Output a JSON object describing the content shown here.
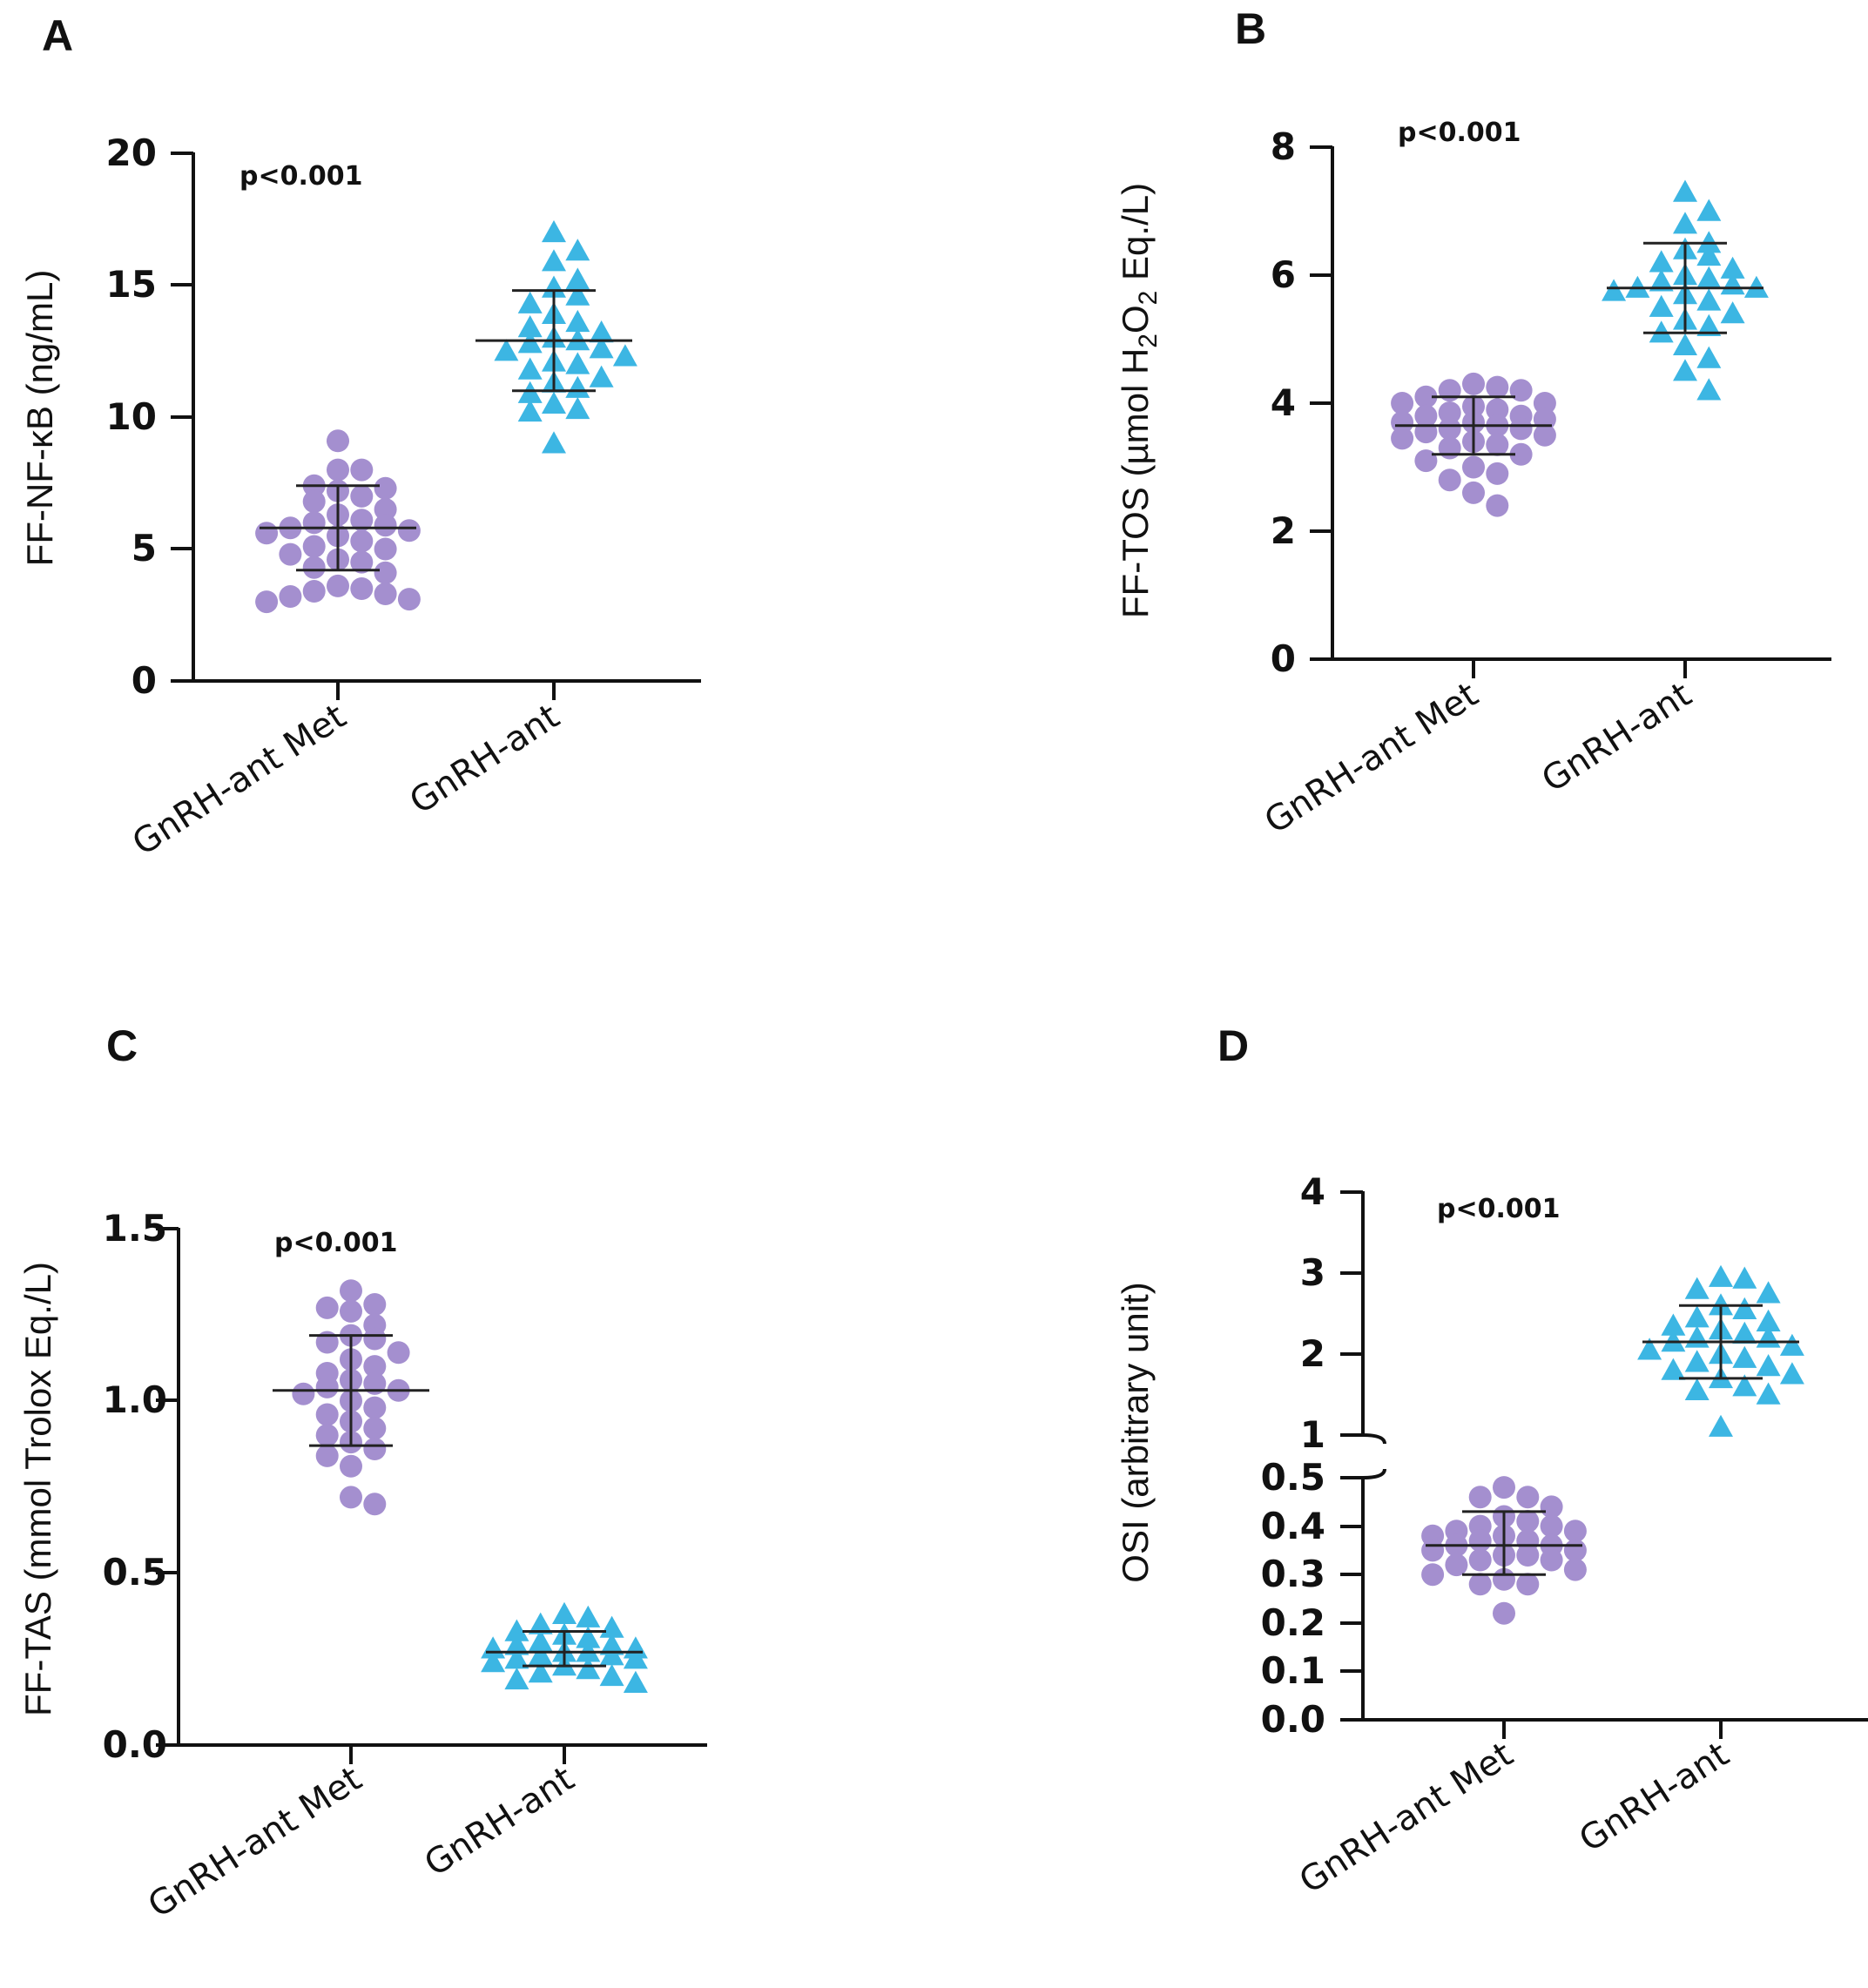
{
  "chart_data": [
    {
      "id": "A",
      "panel_label": "A",
      "type": "scatter",
      "ylabel": "FF-NF-κB (ng/mL)",
      "ylim": [
        0,
        20
      ],
      "yticks": [
        "0",
        "5",
        "10",
        "15",
        "20"
      ],
      "categories": [
        "GnRH-ant Met",
        "GnRH-ant"
      ],
      "annotation": "p<0.001",
      "series": [
        {
          "name": "GnRH-ant Met",
          "color": "#a48fcf",
          "marker": "circle",
          "mean": 5.8,
          "sd_low": 4.2,
          "sd_high": 7.4,
          "values": [
            9.1,
            8.0,
            8.0,
            7.4,
            7.3,
            7.2,
            7.0,
            6.8,
            6.5,
            6.3,
            6.1,
            6.0,
            5.9,
            5.8,
            5.7,
            5.6,
            5.5,
            5.3,
            5.1,
            5.0,
            4.8,
            4.6,
            4.5,
            4.3,
            4.1,
            3.6,
            3.5,
            3.4,
            3.3,
            3.2,
            3.1,
            3.0
          ]
        },
        {
          "name": "GnRH-ant",
          "color": "#3cb6e3",
          "marker": "triangle",
          "mean": 12.9,
          "sd_low": 11.0,
          "sd_high": 14.8,
          "values": [
            17.0,
            16.3,
            15.9,
            15.2,
            14.9,
            14.6,
            14.3,
            13.9,
            13.6,
            13.4,
            13.2,
            13.0,
            12.9,
            12.8,
            12.6,
            12.5,
            12.3,
            12.1,
            12.0,
            11.8,
            11.5,
            11.3,
            11.1,
            10.9,
            10.5,
            10.3,
            10.2,
            9.0
          ]
        }
      ]
    },
    {
      "id": "B",
      "panel_label": "B",
      "type": "scatter",
      "ylabel_pre": "FF-TOS (µmol H",
      "ylabel_sub1": "2",
      "ylabel_mid": "O",
      "ylabel_sub2": "2",
      "ylabel_post": " Eq./L)",
      "ylim": [
        0,
        8
      ],
      "yticks": [
        "0",
        "2",
        "4",
        "6",
        "8"
      ],
      "categories": [
        "GnRH-ant Met",
        "GnRH-ant"
      ],
      "annotation": "p<0.001",
      "series": [
        {
          "name": "GnRH-ant Met",
          "color": "#a48fcf",
          "marker": "circle",
          "mean": 3.65,
          "sd_low": 3.2,
          "sd_high": 4.1,
          "values": [
            4.3,
            4.25,
            4.2,
            4.2,
            4.1,
            4.0,
            4.0,
            3.95,
            3.9,
            3.85,
            3.8,
            3.8,
            3.75,
            3.7,
            3.7,
            3.65,
            3.6,
            3.6,
            3.55,
            3.5,
            3.45,
            3.4,
            3.35,
            3.3,
            3.2,
            3.1,
            3.0,
            2.9,
            2.8,
            2.6,
            2.4
          ]
        },
        {
          "name": "GnRH-ant",
          "color": "#3cb6e3",
          "marker": "triangle",
          "mean": 5.8,
          "sd_low": 5.1,
          "sd_high": 6.5,
          "values": [
            7.3,
            7.0,
            6.8,
            6.5,
            6.4,
            6.3,
            6.2,
            6.1,
            6.0,
            5.95,
            5.9,
            5.85,
            5.8,
            5.8,
            5.75,
            5.7,
            5.6,
            5.5,
            5.4,
            5.3,
            5.2,
            5.1,
            4.9,
            4.7,
            4.5,
            4.2
          ]
        }
      ]
    },
    {
      "id": "C",
      "panel_label": "C",
      "type": "scatter",
      "ylabel": "FF-TAS (mmol Trolox Eq./L)",
      "ylim": [
        0,
        1.5
      ],
      "yticks": [
        "0.0",
        "0.5",
        "1.0",
        "1.5"
      ],
      "categories": [
        "GnRH-ant Met",
        "GnRH-ant"
      ],
      "annotation": "p<0.001",
      "series": [
        {
          "name": "GnRH-ant Met",
          "color": "#a48fcf",
          "marker": "circle",
          "mean": 1.03,
          "sd_low": 0.87,
          "sd_high": 1.19,
          "values": [
            1.32,
            1.28,
            1.27,
            1.26,
            1.22,
            1.19,
            1.18,
            1.17,
            1.14,
            1.12,
            1.1,
            1.08,
            1.06,
            1.05,
            1.04,
            1.03,
            1.02,
            1.0,
            0.98,
            0.96,
            0.94,
            0.92,
            0.9,
            0.88,
            0.86,
            0.84,
            0.81,
            0.72,
            0.7
          ]
        },
        {
          "name": "GnRH-ant",
          "color": "#3cb6e3",
          "marker": "triangle",
          "mean": 0.27,
          "sd_low": 0.23,
          "sd_high": 0.33,
          "values": [
            0.38,
            0.37,
            0.35,
            0.34,
            0.33,
            0.32,
            0.31,
            0.3,
            0.29,
            0.29,
            0.28,
            0.28,
            0.27,
            0.27,
            0.26,
            0.26,
            0.25,
            0.25,
            0.24,
            0.23,
            0.22,
            0.21,
            0.2,
            0.19,
            0.18
          ]
        }
      ]
    },
    {
      "id": "D",
      "panel_label": "D",
      "type": "scatter",
      "ylabel": "OSI (arbitrary unit)",
      "ylim_lower": [
        0,
        0.5
      ],
      "ylim_upper": [
        1,
        4
      ],
      "yticks_lower": [
        "0.0",
        "0.1",
        "0.2",
        "0.3",
        "0.4",
        "0.5"
      ],
      "yticks_upper": [
        "1",
        "2",
        "3",
        "4"
      ],
      "axis_break": true,
      "categories": [
        "GnRH-ant Met",
        "GnRH-ant"
      ],
      "annotation": "p<0.001",
      "series": [
        {
          "name": "GnRH-ant Met",
          "color": "#a48fcf",
          "marker": "circle",
          "mean": 0.36,
          "sd_low": 0.3,
          "sd_high": 0.43,
          "values": [
            0.48,
            0.46,
            0.46,
            0.44,
            0.42,
            0.41,
            0.4,
            0.4,
            0.39,
            0.39,
            0.38,
            0.38,
            0.37,
            0.37,
            0.36,
            0.36,
            0.35,
            0.35,
            0.34,
            0.34,
            0.33,
            0.33,
            0.32,
            0.31,
            0.3,
            0.29,
            0.28,
            0.28,
            0.22
          ]
        },
        {
          "name": "GnRH-ant",
          "color": "#3cb6e3",
          "marker": "triangle",
          "mean": 2.15,
          "sd_low": 1.7,
          "sd_high": 2.6,
          "values": [
            2.95,
            2.93,
            2.8,
            2.75,
            2.6,
            2.55,
            2.45,
            2.4,
            2.35,
            2.3,
            2.25,
            2.2,
            2.2,
            2.15,
            2.1,
            2.05,
            2.0,
            1.95,
            1.9,
            1.85,
            1.8,
            1.75,
            1.7,
            1.6,
            1.55,
            1.5,
            1.1
          ]
        }
      ]
    }
  ]
}
